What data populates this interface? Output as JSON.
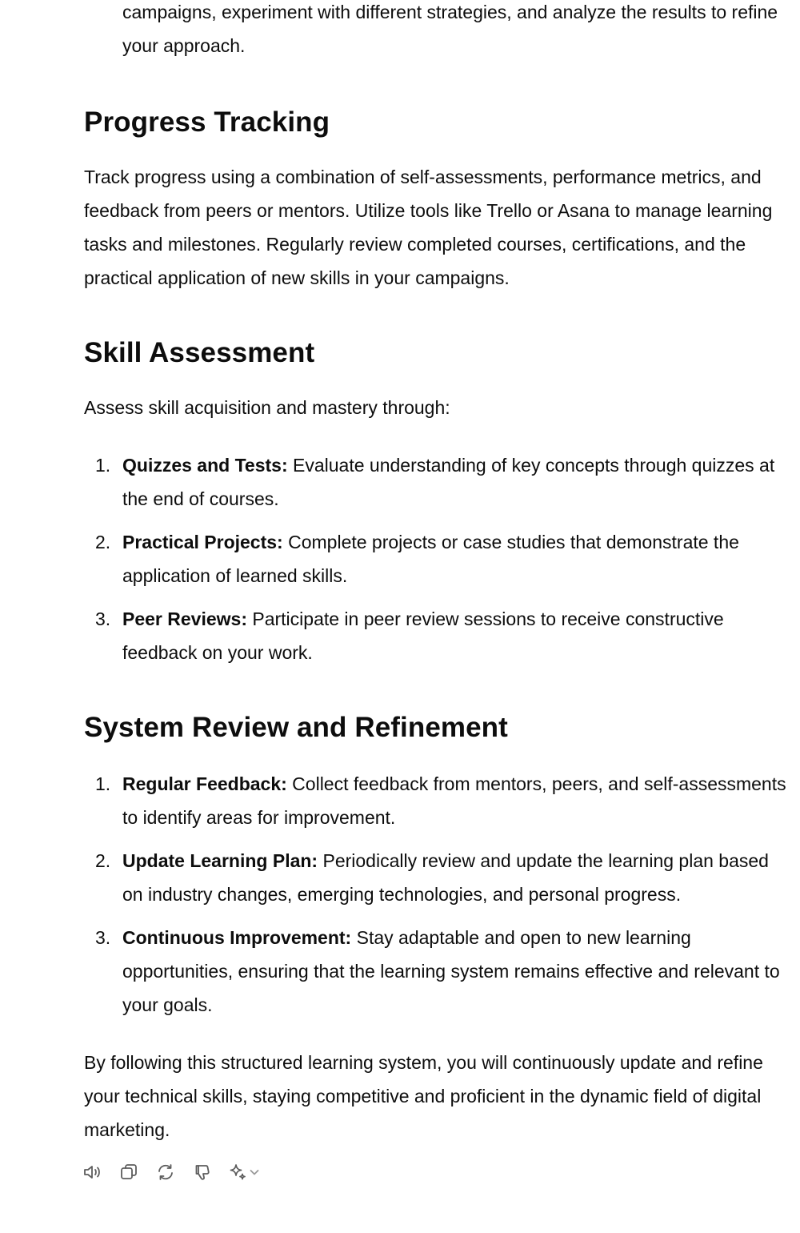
{
  "intro_continued": "campaigns, experiment with different strategies, and analyze the results to refine your approach.",
  "sections": {
    "progress": {
      "heading": "Progress Tracking",
      "body": "Track progress using a combination of self-assessments, performance metrics, and feedback from peers or mentors. Utilize tools like Trello or Asana to manage learning tasks and milestones. Regularly review completed courses, certifications, and the practical application of new skills in your campaigns."
    },
    "skill": {
      "heading": "Skill Assessment",
      "intro": "Assess skill acquisition and mastery through:",
      "items": [
        {
          "num": "1.",
          "title": "Quizzes and Tests:",
          "text": " Evaluate understanding of key concepts through quizzes at the end of courses."
        },
        {
          "num": "2.",
          "title": "Practical Projects:",
          "text": " Complete projects or case studies that demonstrate the application of learned skills."
        },
        {
          "num": "3.",
          "title": "Peer Reviews:",
          "text": " Participate in peer review sessions to receive constructive feedback on your work."
        }
      ]
    },
    "review": {
      "heading": "System Review and Refinement",
      "items": [
        {
          "num": "1.",
          "title": "Regular Feedback:",
          "text": " Collect feedback from mentors, peers, and self-assessments to identify areas for improvement."
        },
        {
          "num": "2.",
          "title": "Update Learning Plan:",
          "text": " Periodically review and update the learning plan based on industry changes, emerging technologies, and personal progress."
        },
        {
          "num": "3.",
          "title": "Continuous Improvement:",
          "text": " Stay adaptable and open to new learning opportunities, ensuring that the learning system remains effective and relevant to your goals."
        }
      ]
    }
  },
  "conclusion": "By following this structured learning system, you will continuously update and refine your technical skills, staying competitive and proficient in the dynamic field of digital marketing.",
  "toolbar": {
    "icons": [
      "speaker-icon",
      "copy-icon",
      "regenerate-icon",
      "thumbs-down-icon",
      "sparkle-icon",
      "chevron-down-icon"
    ],
    "icon_color": "#5d5d5d"
  }
}
